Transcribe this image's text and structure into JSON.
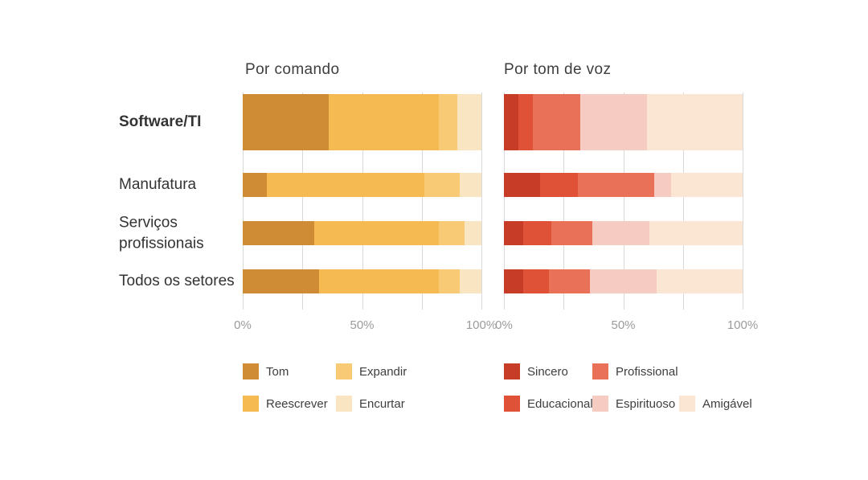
{
  "page": {
    "background": "#ffffff",
    "gridline_color": "#d9d9d9",
    "axis_label_color": "#9b9b9b",
    "text_color": "#3e3e3e"
  },
  "chart_data": [
    {
      "type": "bar",
      "orientation": "horizontal",
      "stacked": true,
      "title": "Por comando",
      "categories": [
        "Software/TI",
        "Manufatura",
        "Serviços profissionais",
        "Todos os setores"
      ],
      "highlighted_category": "Software/TI",
      "unit": "%",
      "x_axis": {
        "range": [
          0,
          100
        ],
        "ticks": [
          "0%",
          "50%",
          "100%"
        ],
        "gridlines_pct": [
          0,
          25,
          50,
          75,
          100
        ]
      },
      "series": [
        {
          "name": "Tom",
          "color": "#cf8c34",
          "values": [
            36,
            10,
            30,
            32
          ]
        },
        {
          "name": "Reescrever",
          "color": "#f6ba52",
          "values": [
            46,
            66,
            52,
            50
          ]
        },
        {
          "name": "Expandir",
          "color": "#f8ca76",
          "values": [
            8,
            15,
            11,
            9
          ]
        },
        {
          "name": "Encurtar",
          "color": "#fae5c2",
          "values": [
            10,
            9,
            7,
            9
          ]
        }
      ],
      "legend_rows": [
        [
          "Tom",
          "Expandir"
        ],
        [
          "Reescrever",
          "Encurtar"
        ]
      ]
    },
    {
      "type": "bar",
      "orientation": "horizontal",
      "stacked": true,
      "title": "Por tom de voz",
      "categories": [
        "Software/TI",
        "Manufatura",
        "Serviços profissionais",
        "Todos os setores"
      ],
      "highlighted_category": "Software/TI",
      "unit": "%",
      "x_axis": {
        "range": [
          0,
          100
        ],
        "ticks": [
          "0%",
          "50%",
          "100%"
        ],
        "gridlines_pct": [
          0,
          25,
          50,
          75,
          100
        ]
      },
      "series": [
        {
          "name": "Sincero",
          "color": "#c73c26",
          "values": [
            6,
            15,
            8,
            8
          ]
        },
        {
          "name": "Educacional",
          "color": "#df5237",
          "values": [
            6,
            16,
            12,
            11
          ]
        },
        {
          "name": "Profissional",
          "color": "#e97157",
          "values": [
            20,
            32,
            17,
            17
          ]
        },
        {
          "name": "Espirituoso",
          "color": "#f6cbc2",
          "values": [
            28,
            7,
            24,
            28
          ]
        },
        {
          "name": "Amigável",
          "color": "#fae6d3",
          "values": [
            40,
            30,
            39,
            36
          ]
        }
      ],
      "legend_rows": [
        [
          "Sincero",
          "Profissional"
        ],
        [
          "Educacional",
          "Espirituoso",
          "Amigável"
        ]
      ]
    }
  ]
}
